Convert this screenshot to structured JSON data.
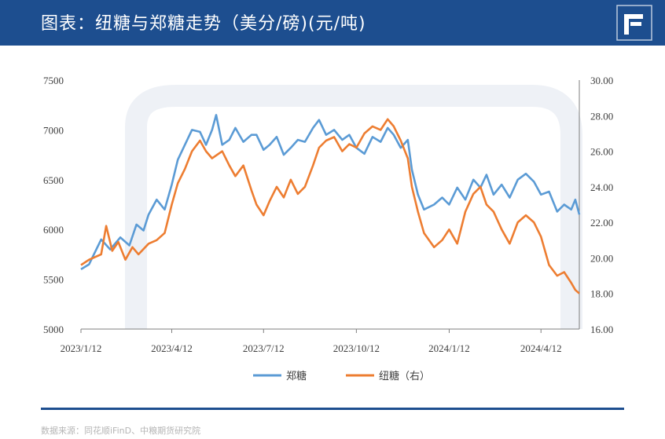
{
  "header": {
    "title": "图表：纽糖与郑糖走势（美分/磅)(元/吨)"
  },
  "source": "数据来源：同花顺iFinD、中粮期货研究院",
  "colors": {
    "header_bg": "#1d4e8f",
    "zhengtang": "#5b9bd5",
    "niutang": "#ed7d31",
    "axis": "#666666"
  },
  "chart_data": {
    "type": "line",
    "x_ticks": [
      "2023/1/12",
      "2023/4/12",
      "2023/7/12",
      "2023/10/12",
      "2024/1/12",
      "2024/4/12"
    ],
    "x_range": [
      "2023-01-12",
      "2024-05-20"
    ],
    "y_left": {
      "ticks": [
        "7500",
        "7000",
        "6500",
        "6000",
        "5500",
        "5000"
      ],
      "range": [
        5000,
        7500
      ]
    },
    "y_right": {
      "ticks": [
        "30.00",
        "28.00",
        "26.00",
        "24.00",
        "22.00",
        "20.00",
        "18.00",
        "16.00"
      ],
      "range": [
        16,
        30
      ]
    },
    "series": [
      {
        "name": "郑糖",
        "axis": "left",
        "color": "#5b9bd5",
        "points": [
          [
            "2023-01-12",
            5600
          ],
          [
            "2023-01-20",
            5650
          ],
          [
            "2023-02-01",
            5900
          ],
          [
            "2023-02-10",
            5800
          ],
          [
            "2023-02-20",
            5920
          ],
          [
            "2023-03-01",
            5840
          ],
          [
            "2023-03-08",
            6050
          ],
          [
            "2023-03-15",
            5990
          ],
          [
            "2023-03-20",
            6150
          ],
          [
            "2023-03-28",
            6300
          ],
          [
            "2023-04-05",
            6200
          ],
          [
            "2023-04-12",
            6450
          ],
          [
            "2023-04-18",
            6700
          ],
          [
            "2023-04-25",
            6850
          ],
          [
            "2023-05-02",
            7000
          ],
          [
            "2023-05-10",
            6980
          ],
          [
            "2023-05-16",
            6850
          ],
          [
            "2023-05-22",
            7000
          ],
          [
            "2023-05-26",
            7150
          ],
          [
            "2023-06-01",
            6850
          ],
          [
            "2023-06-08",
            6900
          ],
          [
            "2023-06-14",
            7020
          ],
          [
            "2023-06-22",
            6880
          ],
          [
            "2023-06-30",
            6950
          ],
          [
            "2023-07-05",
            6950
          ],
          [
            "2023-07-12",
            6800
          ],
          [
            "2023-07-18",
            6850
          ],
          [
            "2023-07-25",
            6930
          ],
          [
            "2023-08-01",
            6750
          ],
          [
            "2023-08-08",
            6820
          ],
          [
            "2023-08-15",
            6900
          ],
          [
            "2023-08-22",
            6880
          ],
          [
            "2023-08-30",
            7020
          ],
          [
            "2023-09-05",
            7100
          ],
          [
            "2023-09-12",
            6950
          ],
          [
            "2023-09-20",
            7000
          ],
          [
            "2023-09-28",
            6900
          ],
          [
            "2023-10-05",
            6950
          ],
          [
            "2023-10-12",
            6820
          ],
          [
            "2023-10-20",
            6760
          ],
          [
            "2023-10-28",
            6930
          ],
          [
            "2023-11-05",
            6880
          ],
          [
            "2023-11-12",
            7020
          ],
          [
            "2023-11-18",
            6950
          ],
          [
            "2023-11-25",
            6820
          ],
          [
            "2023-12-02",
            6900
          ],
          [
            "2023-12-06",
            6600
          ],
          [
            "2023-12-12",
            6350
          ],
          [
            "2023-12-18",
            6200
          ],
          [
            "2023-12-28",
            6250
          ],
          [
            "2024-01-05",
            6320
          ],
          [
            "2024-01-12",
            6250
          ],
          [
            "2024-01-20",
            6420
          ],
          [
            "2024-01-28",
            6300
          ],
          [
            "2024-02-05",
            6500
          ],
          [
            "2024-02-12",
            6420
          ],
          [
            "2024-02-18",
            6550
          ],
          [
            "2024-02-25",
            6350
          ],
          [
            "2024-03-04",
            6450
          ],
          [
            "2024-03-12",
            6320
          ],
          [
            "2024-03-20",
            6500
          ],
          [
            "2024-03-28",
            6560
          ],
          [
            "2024-04-05",
            6480
          ],
          [
            "2024-04-12",
            6350
          ],
          [
            "2024-04-20",
            6380
          ],
          [
            "2024-04-28",
            6180
          ],
          [
            "2024-05-05",
            6250
          ],
          [
            "2024-05-12",
            6200
          ],
          [
            "2024-05-16",
            6300
          ],
          [
            "2024-05-20",
            6150
          ]
        ]
      },
      {
        "name": "纽糖（右）",
        "axis": "right",
        "color": "#ed7d31",
        "points": [
          [
            "2023-01-12",
            19.6
          ],
          [
            "2023-01-20",
            19.9
          ],
          [
            "2023-02-01",
            20.2
          ],
          [
            "2023-02-06",
            21.8
          ],
          [
            "2023-02-12",
            20.4
          ],
          [
            "2023-02-18",
            20.9
          ],
          [
            "2023-02-25",
            19.9
          ],
          [
            "2023-03-04",
            20.6
          ],
          [
            "2023-03-10",
            20.2
          ],
          [
            "2023-03-20",
            20.8
          ],
          [
            "2023-03-28",
            21.0
          ],
          [
            "2023-04-05",
            21.4
          ],
          [
            "2023-04-12",
            23.0
          ],
          [
            "2023-04-18",
            24.2
          ],
          [
            "2023-04-25",
            25.0
          ],
          [
            "2023-05-02",
            26.0
          ],
          [
            "2023-05-10",
            26.6
          ],
          [
            "2023-05-16",
            26.0
          ],
          [
            "2023-05-22",
            25.6
          ],
          [
            "2023-06-01",
            26.0
          ],
          [
            "2023-06-08",
            25.2
          ],
          [
            "2023-06-14",
            24.6
          ],
          [
            "2023-06-22",
            25.2
          ],
          [
            "2023-06-30",
            23.8
          ],
          [
            "2023-07-05",
            23.0
          ],
          [
            "2023-07-12",
            22.4
          ],
          [
            "2023-07-18",
            23.2
          ],
          [
            "2023-07-25",
            24.0
          ],
          [
            "2023-08-01",
            23.4
          ],
          [
            "2023-08-08",
            24.4
          ],
          [
            "2023-08-15",
            23.6
          ],
          [
            "2023-08-22",
            24.0
          ],
          [
            "2023-08-30",
            25.2
          ],
          [
            "2023-09-05",
            26.2
          ],
          [
            "2023-09-12",
            26.6
          ],
          [
            "2023-09-20",
            26.8
          ],
          [
            "2023-09-28",
            26.0
          ],
          [
            "2023-10-05",
            26.4
          ],
          [
            "2023-10-12",
            26.2
          ],
          [
            "2023-10-20",
            27.0
          ],
          [
            "2023-10-28",
            27.4
          ],
          [
            "2023-11-05",
            27.2
          ],
          [
            "2023-11-12",
            27.8
          ],
          [
            "2023-11-18",
            27.4
          ],
          [
            "2023-11-25",
            26.6
          ],
          [
            "2023-12-02",
            25.6
          ],
          [
            "2023-12-06",
            24.0
          ],
          [
            "2023-12-12",
            22.6
          ],
          [
            "2023-12-18",
            21.4
          ],
          [
            "2023-12-28",
            20.6
          ],
          [
            "2024-01-05",
            21.0
          ],
          [
            "2024-01-12",
            21.6
          ],
          [
            "2024-01-20",
            20.8
          ],
          [
            "2024-01-28",
            22.6
          ],
          [
            "2024-02-05",
            23.6
          ],
          [
            "2024-02-12",
            24.0
          ],
          [
            "2024-02-18",
            23.0
          ],
          [
            "2024-02-25",
            22.6
          ],
          [
            "2024-03-04",
            21.6
          ],
          [
            "2024-03-12",
            20.8
          ],
          [
            "2024-03-20",
            22.0
          ],
          [
            "2024-03-28",
            22.4
          ],
          [
            "2024-04-05",
            22.0
          ],
          [
            "2024-04-12",
            21.2
          ],
          [
            "2024-04-20",
            19.6
          ],
          [
            "2024-04-28",
            19.0
          ],
          [
            "2024-05-05",
            19.2
          ],
          [
            "2024-05-12",
            18.6
          ],
          [
            "2024-05-16",
            18.2
          ],
          [
            "2024-05-20",
            18.0
          ]
        ]
      }
    ],
    "legend_position": "bottom"
  }
}
